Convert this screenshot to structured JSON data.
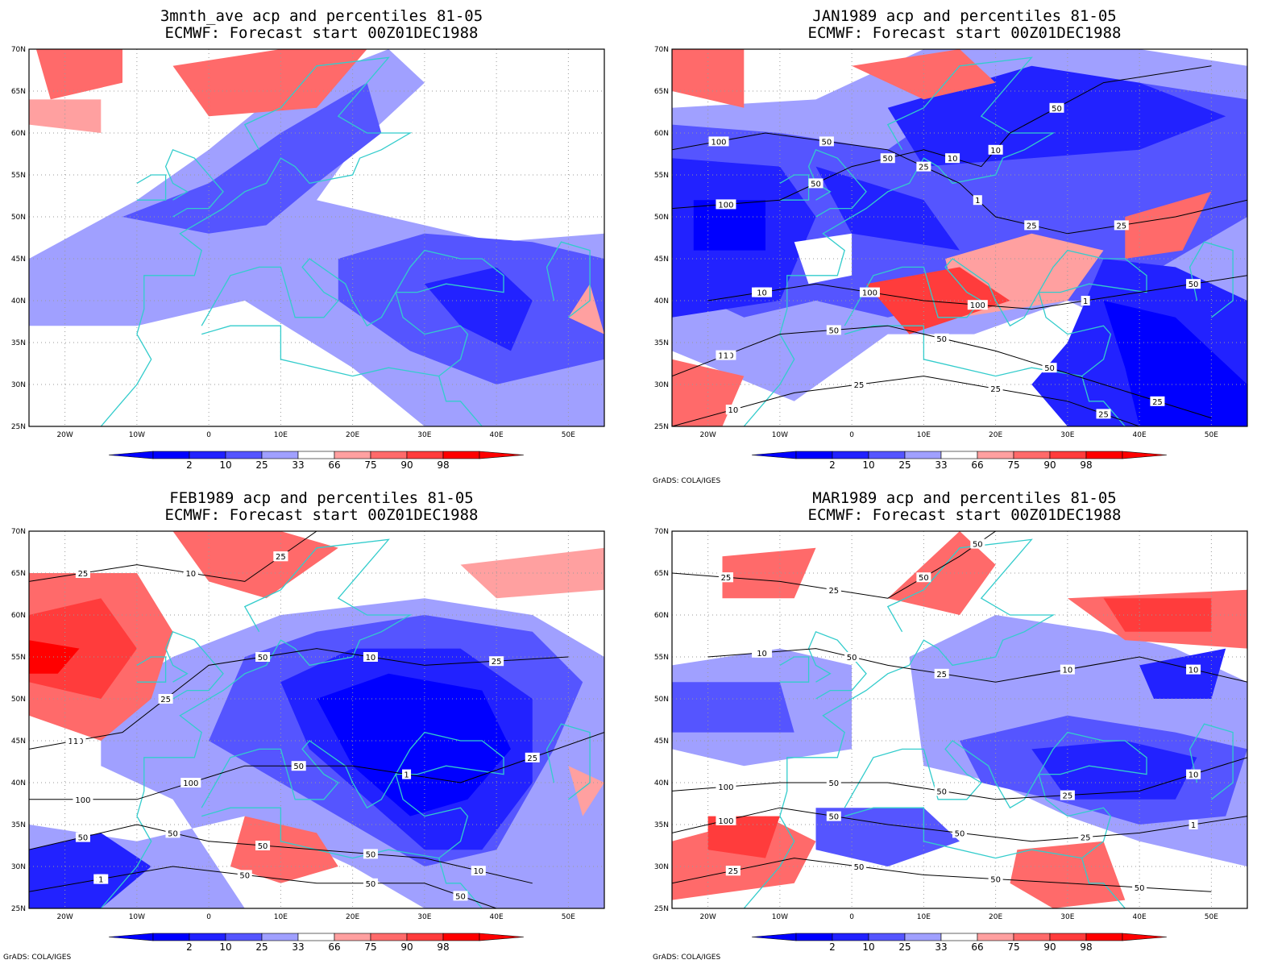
{
  "panels": [
    {
      "title_line1": "3mnth_ave acp and percentiles 81-05",
      "title_line2": "ECMWF: Forecast start 00Z01DEC1988",
      "credit": "",
      "contours": []
    },
    {
      "title_line1": "JAN1989 acp and percentiles 81-05",
      "title_line2": "ECMWF: Forecast start 00Z01DEC1988",
      "credit": "GrADS: COLA/IGES",
      "contours": [
        "100",
        "100",
        "100",
        "100",
        "50",
        "50",
        "50",
        "100",
        "50",
        "25",
        "50",
        "25",
        "100",
        "50",
        "25",
        "10",
        "1",
        "1",
        "50",
        "25",
        "10",
        "25",
        "50",
        "25",
        "10",
        "50",
        "25",
        "10",
        "1"
      ]
    },
    {
      "title_line1": "FEB1989 acp and percentiles 81-05",
      "title_line2": "ECMWF: Forecast start 00Z01DEC1988",
      "credit": "GrADS: COLA/IGES",
      "contours": [
        "50",
        "100",
        "100",
        "50",
        "25",
        "25",
        "25",
        "100",
        "50",
        "50",
        "50",
        "50",
        "50",
        "50",
        "50",
        "25",
        "10",
        "1",
        "50",
        "50",
        "10",
        "25",
        "25",
        "10",
        "1",
        "25",
        "1"
      ]
    },
    {
      "title_line1": "MAR1989 acp and percentiles 81-05",
      "title_line2": "ECMWF: Forecast start 00Z01DEC1988",
      "credit": "GrADS: COLA/IGES",
      "contours": [
        "50",
        "100",
        "100",
        "100",
        "50",
        "25",
        "50",
        "50",
        "50",
        "50",
        "50",
        "25",
        "50",
        "50",
        "50",
        "50",
        "10",
        "25",
        "25",
        "50",
        "25",
        "10",
        "10",
        "1",
        "25",
        "25",
        "10"
      ]
    }
  ],
  "axes": {
    "lat_labels": [
      "70N",
      "65N",
      "60N",
      "55N",
      "50N",
      "45N",
      "40N",
      "35N",
      "30N",
      "25N"
    ],
    "lon_labels": [
      "20W",
      "10W",
      "0",
      "10E",
      "20E",
      "30E",
      "40E",
      "50E"
    ]
  },
  "colorbar": {
    "labels": [
      "2",
      "10",
      "25",
      "33",
      "66",
      "75",
      "90",
      "98"
    ],
    "colors": [
      "#0000ff",
      "#2222ff",
      "#5555ff",
      "#a0a0ff",
      "#ffffff",
      "#ffa0a0",
      "#ff6a6a",
      "#ff3c3c",
      "#ff0000"
    ]
  },
  "palette": {
    "coast": "#33cccc",
    "contour": "#000000"
  }
}
